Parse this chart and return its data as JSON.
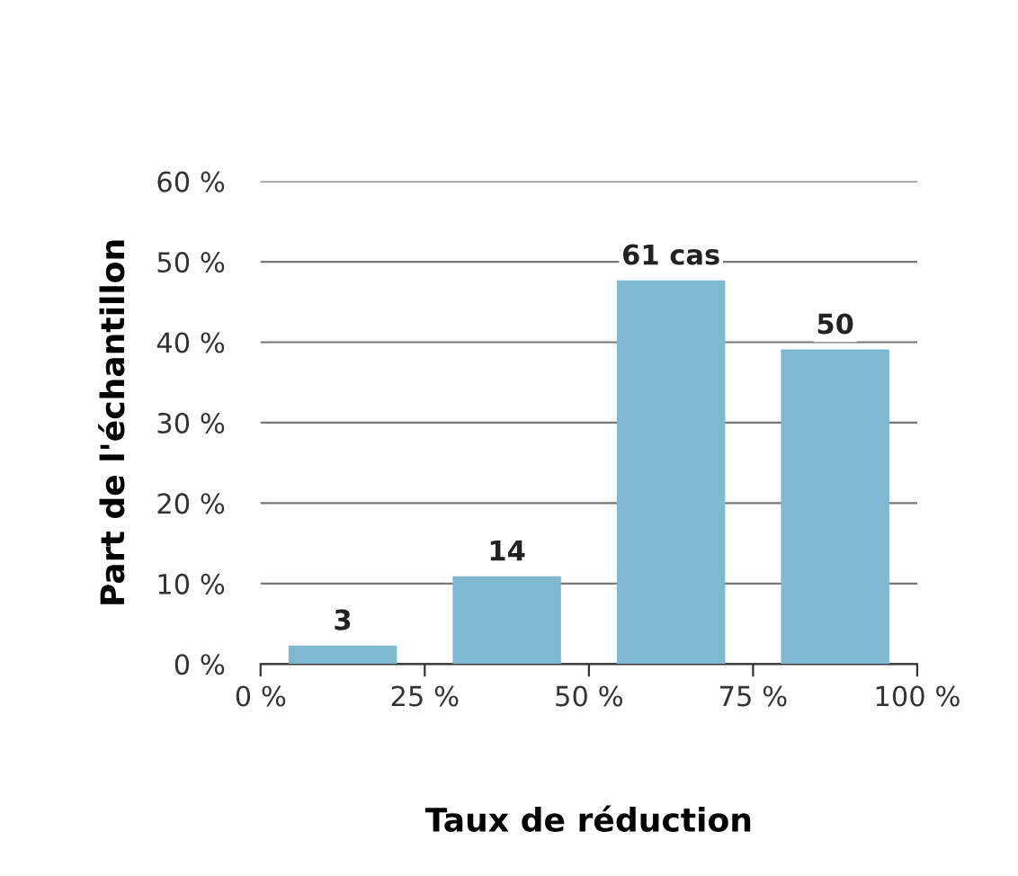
{
  "chart_data": {
    "type": "histogram",
    "xlabel": "Taux de réduction",
    "ylabel": "Part de l'échantillon",
    "bins": [
      0,
      25,
      50,
      75,
      100
    ],
    "values": [
      2.3,
      10.9,
      47.7,
      39.1
    ],
    "annotations": [
      {
        "text": "3",
        "x": 12.5,
        "y": 2.3
      },
      {
        "text": "14",
        "x": 37.5,
        "y": 10.9
      },
      {
        "text": "61 cas",
        "x": 62.5,
        "y": 47.7
      },
      {
        "text": "50",
        "x": 87.5,
        "y": 39.1
      }
    ],
    "color": "#7fb9d1",
    "xlim": [
      0,
      100
    ],
    "xticks": [
      {
        "value": 0,
        "label": "0 %"
      },
      {
        "value": 25,
        "label": "25 %"
      },
      {
        "value": 50,
        "label": "50 %"
      },
      {
        "value": 75,
        "label": "75 %"
      },
      {
        "value": 100,
        "label": "100 %"
      }
    ],
    "ylim": [
      0,
      60
    ],
    "yticks": [
      {
        "value": 0,
        "label": "0 %"
      },
      {
        "value": 10,
        "label": "10 %"
      },
      {
        "value": 20,
        "label": "20 %"
      },
      {
        "value": 30,
        "label": "30 %"
      },
      {
        "value": 40,
        "label": "40 %"
      },
      {
        "value": 50,
        "label": "50 %"
      },
      {
        "value": 60,
        "label": "60 %"
      }
    ],
    "grid": "y"
  }
}
